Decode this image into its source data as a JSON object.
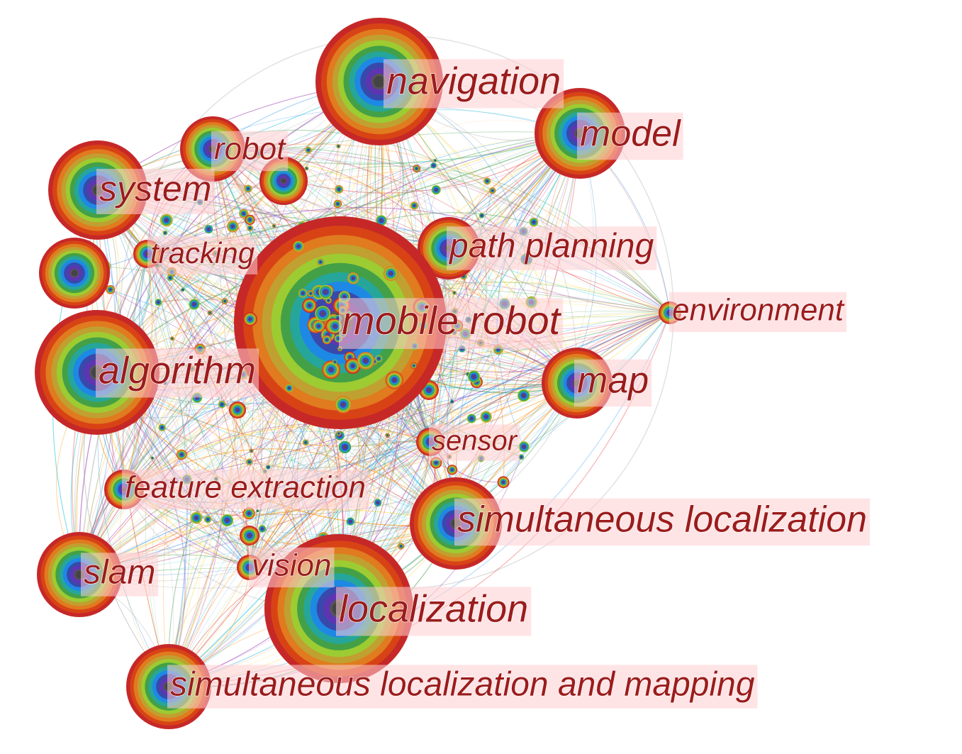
{
  "network": {
    "type": "keyword co-occurrence network",
    "ring_palette": [
      "#c62828",
      "#d84315",
      "#e07b1f",
      "#c0a030",
      "#9ccc32",
      "#43a047",
      "#26a69a",
      "#1e88e5",
      "#3949ab",
      "#5e35b1",
      "#555555"
    ],
    "link_palette": [
      "#e53935",
      "#fb8c00",
      "#fdd835",
      "#43a047",
      "#26c6da",
      "#1e88e5",
      "#8e24aa",
      "#9e9e9e"
    ],
    "center_color": "#444444",
    "label_color": "#9b1c1c",
    "hub": "mobile-robot",
    "keywords": [
      {
        "id": "navigation",
        "label": "navigation"
      },
      {
        "id": "model",
        "label": "model"
      },
      {
        "id": "robot",
        "label": "robot"
      },
      {
        "id": "system",
        "label": "system"
      },
      {
        "id": "tracking",
        "label": "tracking"
      },
      {
        "id": "path-planning",
        "label": "path planning"
      },
      {
        "id": "mobile-robot",
        "label": "mobile robot"
      },
      {
        "id": "environment",
        "label": "environment"
      },
      {
        "id": "algorithm",
        "label": "algorithm"
      },
      {
        "id": "map",
        "label": "map"
      },
      {
        "id": "sensor",
        "label": "sensor"
      },
      {
        "id": "feature-extraction",
        "label": "feature extraction"
      },
      {
        "id": "simultaneous-localization",
        "label": "simultaneous localization"
      },
      {
        "id": "slam",
        "label": "slam"
      },
      {
        "id": "vision",
        "label": "vision"
      },
      {
        "id": "localization",
        "label": "localization"
      },
      {
        "id": "simultaneous-localization-and-mapping",
        "label": "simultaneous localization and mapping"
      }
    ]
  }
}
